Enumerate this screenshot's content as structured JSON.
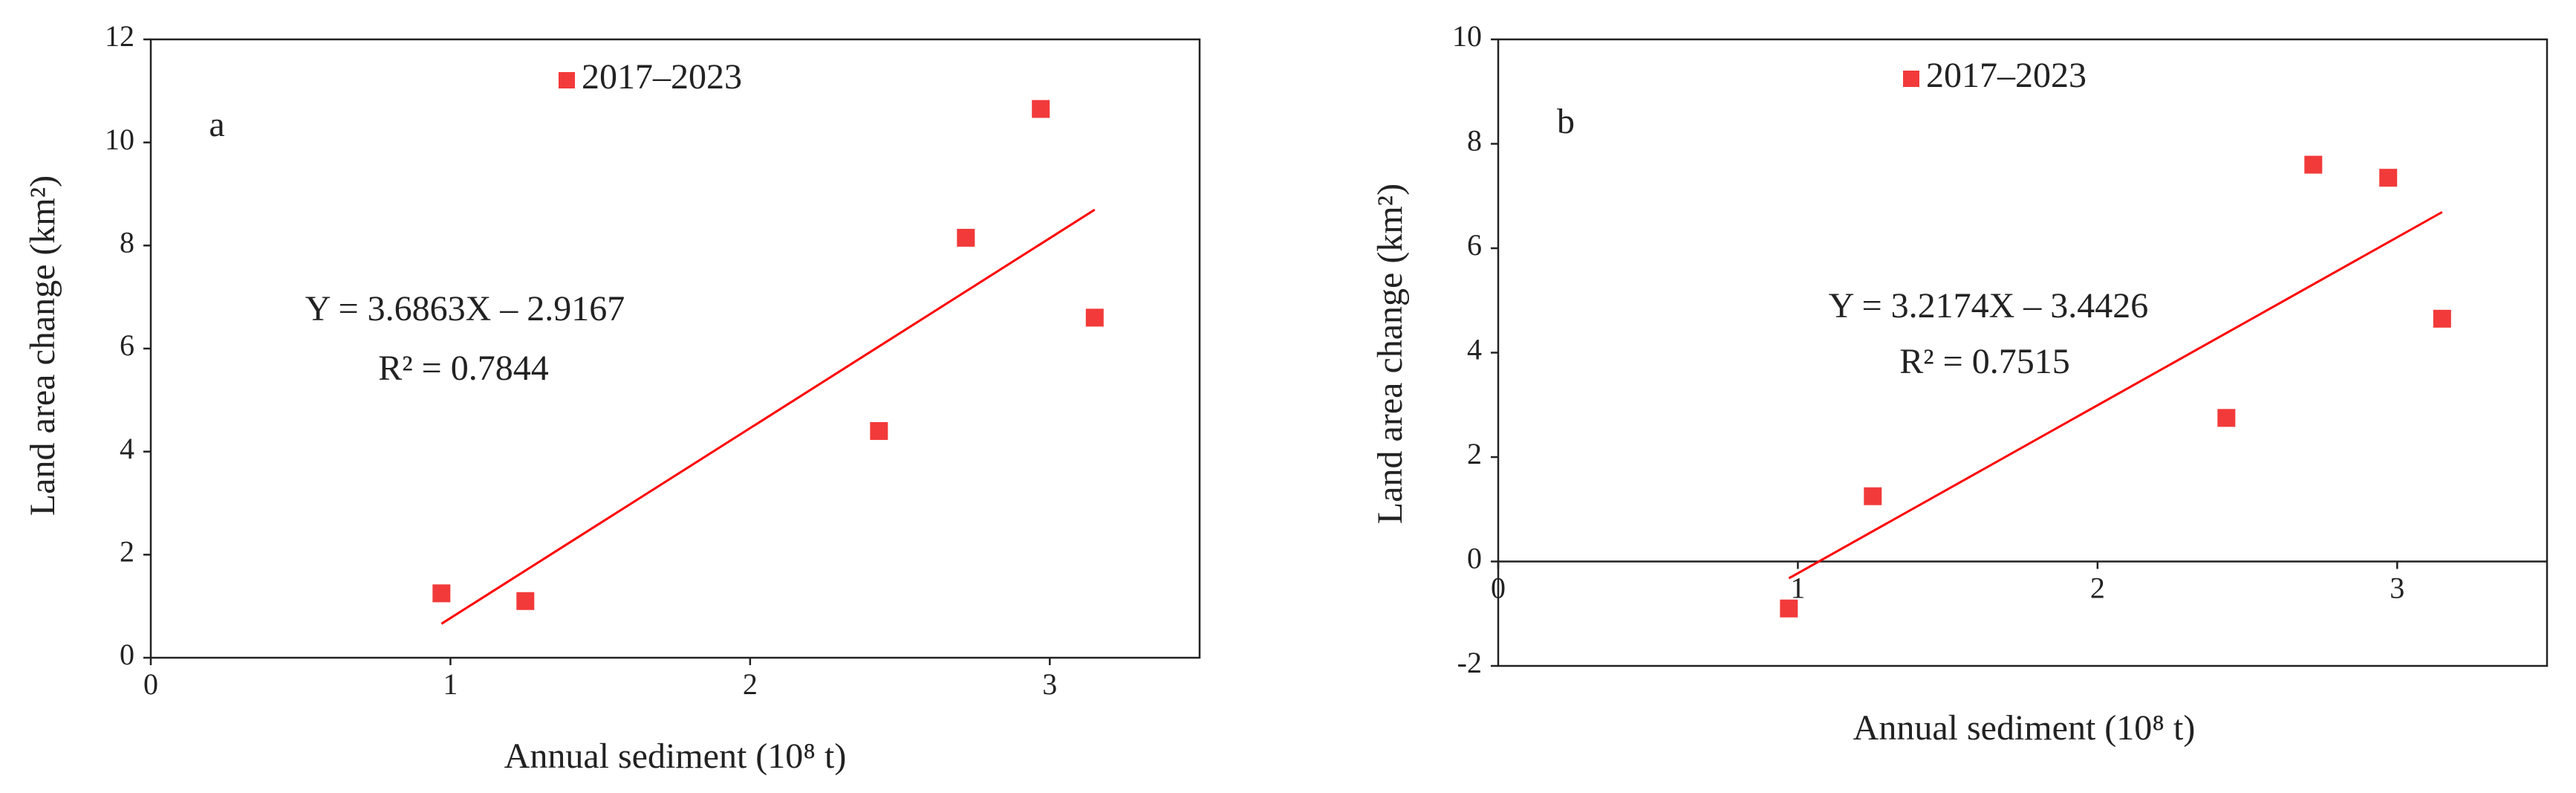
{
  "chart_data": [
    {
      "type": "scatter",
      "panel_label": "a",
      "x_label": "Annual sediment (10⁸ t)",
      "y_label": "Land area change (km²)",
      "series": [
        {
          "name": "2017–2023",
          "color": "#f23a3a",
          "x": [
            0.97,
            1.25,
            2.43,
            2.72,
            2.97,
            3.15
          ],
          "values": [
            1.25,
            1.1,
            4.4,
            8.15,
            10.65,
            6.6
          ]
        }
      ],
      "trendline": {
        "slope": 3.6863,
        "intercept": -2.9167,
        "color": "#ff0000",
        "equation": "Y = 3.6863X – 2.9167",
        "r_squared": "R² = 0.7844"
      },
      "xlim": [
        0,
        3.5
      ],
      "xticks": [
        0,
        1,
        2,
        3
      ],
      "ylim": [
        0,
        12
      ],
      "yticks": [
        0,
        2,
        4,
        6,
        8,
        10,
        12
      ]
    },
    {
      "type": "scatter",
      "panel_label": "b",
      "x_label": "Annual sediment (10⁸ t)",
      "y_label": "Land area change (km²)",
      "series": [
        {
          "name": "2017–2023",
          "color": "#f23a3a",
          "x": [
            0.97,
            1.25,
            2.43,
            2.72,
            2.97,
            3.15
          ],
          "values": [
            -0.9,
            1.25,
            2.75,
            7.6,
            7.35,
            4.65
          ]
        }
      ],
      "trendline": {
        "slope": 3.2174,
        "intercept": -3.4426,
        "color": "#ff0000",
        "equation": "Y = 3.2174X – 3.4426",
        "r_squared": "R² = 0.7515"
      },
      "xlim": [
        0,
        3.5
      ],
      "xticks": [
        0,
        1,
        2,
        3
      ],
      "ylim": [
        -2,
        10
      ],
      "yticks": [
        -2,
        0,
        2,
        4,
        6,
        8,
        10
      ]
    }
  ]
}
